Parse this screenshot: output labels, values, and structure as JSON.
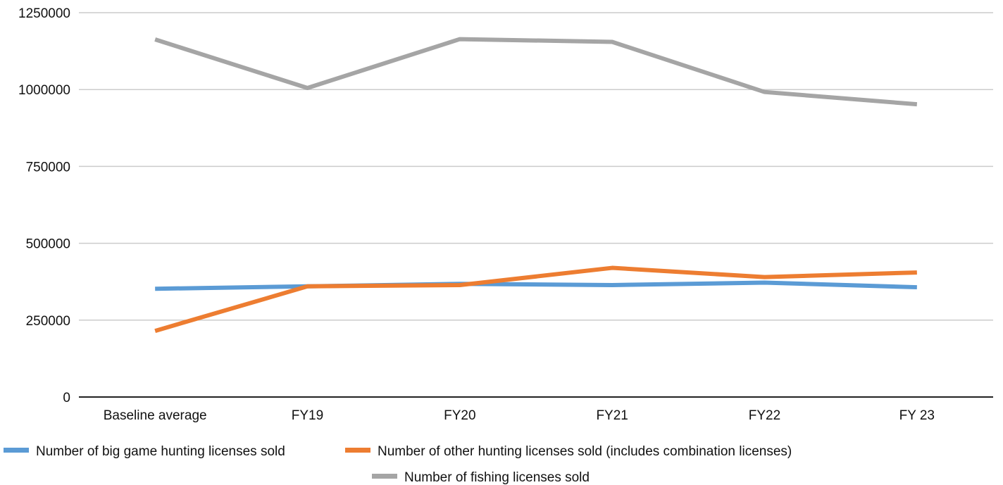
{
  "chart_data": {
    "type": "line",
    "title": "",
    "xlabel": "",
    "ylabel": "",
    "categories": [
      "Baseline average",
      "FY19",
      "FY20",
      "FY21",
      "FY22",
      "FY 23"
    ],
    "y_ticks": [
      "0",
      "250000",
      "500000",
      "750000",
      "1000000",
      "1250000"
    ],
    "ylim": [
      0,
      1250000
    ],
    "grid": true,
    "legend_position": "bottom",
    "series": [
      {
        "name": "Number of big game hunting licenses sold",
        "color": "#5B9BD5",
        "values": [
          352000,
          360000,
          368000,
          364000,
          372000,
          357000
        ]
      },
      {
        "name": "Number of other hunting licenses sold (includes combination licenses)",
        "color": "#ED7D31",
        "values": [
          215000,
          360000,
          364000,
          420000,
          390000,
          405000
        ]
      },
      {
        "name": "Number of fishing licenses sold",
        "color": "#A5A5A5",
        "values": [
          1163000,
          1005000,
          1164000,
          1155000,
          992000,
          952000
        ]
      }
    ]
  }
}
